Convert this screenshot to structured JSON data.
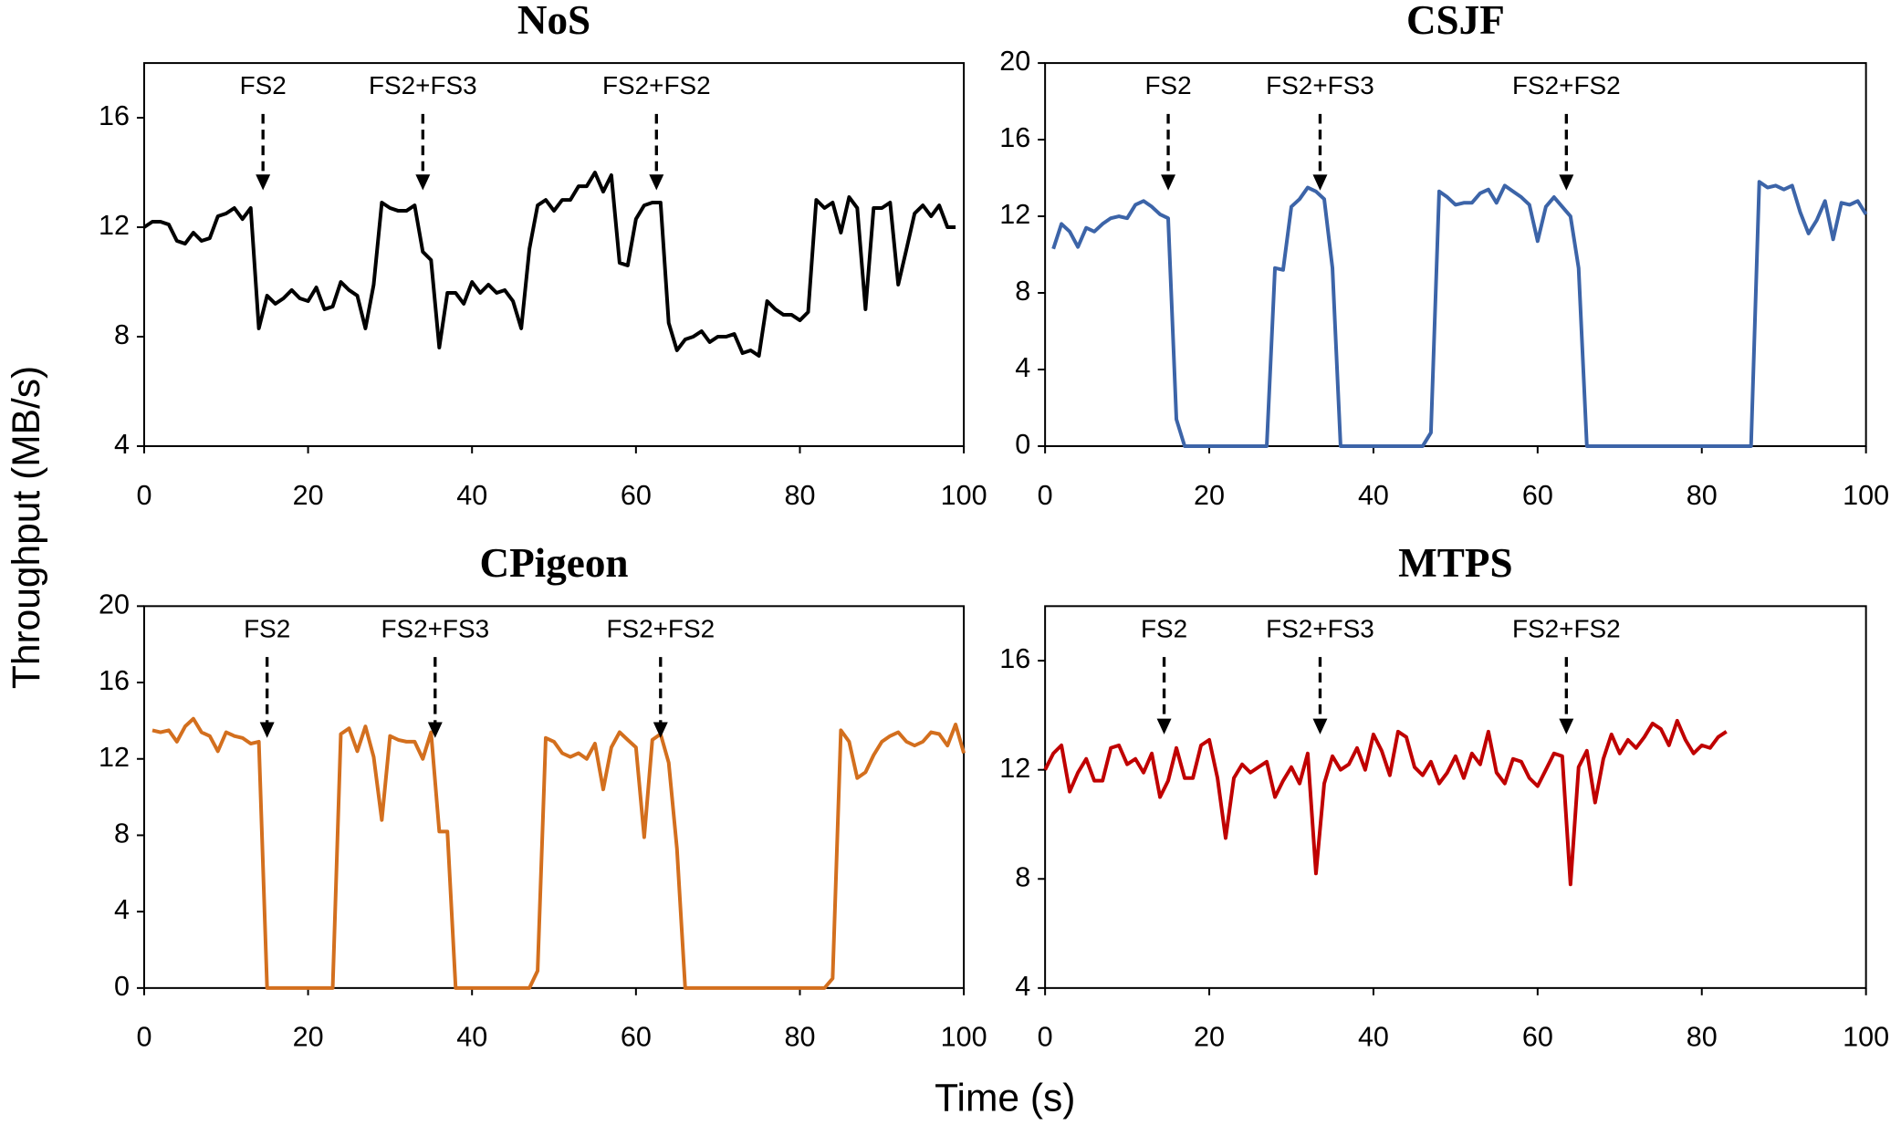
{
  "ylabel": "Throughput (MB/s)",
  "xlabel": "Time (s)",
  "chart_data": [
    {
      "type": "line",
      "title": "NoS",
      "color": "#000000",
      "xlim": [
        0,
        100
      ],
      "xticks": [
        0,
        20,
        40,
        60,
        80,
        100
      ],
      "ylim": [
        4,
        18
      ],
      "yticks": [
        4,
        8,
        12,
        16
      ],
      "x": [
        0,
        1,
        2,
        3,
        4,
        5,
        6,
        7,
        8,
        9,
        10,
        11,
        12,
        13,
        14,
        15,
        16,
        17,
        18,
        19,
        20,
        21,
        22,
        23,
        24,
        25,
        26,
        27,
        28,
        29,
        30,
        31,
        32,
        33,
        34,
        35,
        36,
        37,
        38,
        39,
        40,
        41,
        42,
        43,
        44,
        45,
        46,
        47,
        48,
        49,
        50,
        51,
        52,
        53,
        54,
        55,
        56,
        57,
        58,
        59,
        60,
        61,
        62,
        63,
        64,
        65,
        66,
        67,
        68,
        69,
        70,
        71,
        72,
        73,
        74,
        75,
        76,
        77,
        78,
        79,
        80,
        81,
        82,
        83,
        84,
        85,
        86,
        87,
        88,
        89,
        90,
        91,
        92,
        93,
        94,
        95,
        96,
        97,
        98,
        99
      ],
      "values": [
        12.0,
        12.2,
        12.2,
        12.1,
        11.5,
        11.4,
        11.8,
        11.5,
        11.6,
        12.4,
        12.5,
        12.7,
        12.3,
        12.7,
        8.3,
        9.5,
        9.2,
        9.4,
        9.7,
        9.4,
        9.3,
        9.8,
        9.0,
        9.1,
        10.0,
        9.7,
        9.5,
        8.3,
        9.9,
        12.9,
        12.7,
        12.6,
        12.6,
        12.8,
        11.1,
        10.8,
        7.6,
        9.6,
        9.6,
        9.2,
        10.0,
        9.6,
        9.9,
        9.6,
        9.7,
        9.3,
        8.3,
        11.2,
        12.8,
        13.0,
        12.6,
        13.0,
        13.0,
        13.5,
        13.5,
        14.0,
        13.3,
        13.9,
        10.7,
        10.6,
        12.3,
        12.8,
        12.9,
        12.9,
        8.5,
        7.5,
        7.9,
        8.0,
        8.2,
        7.8,
        8.0,
        8.0,
        8.1,
        7.4,
        7.5,
        7.3,
        9.3,
        9.0,
        8.8,
        8.8,
        8.6,
        8.9,
        13.0,
        12.7,
        12.9,
        11.8,
        13.1,
        12.7,
        9.0,
        12.7,
        12.7,
        12.9,
        9.9,
        11.2,
        12.5,
        12.8,
        12.4,
        12.8,
        12.0,
        12.0
      ],
      "annotations": [
        {
          "text": "FS2",
          "x": 14.5,
          "y": 13.35
        },
        {
          "text": "FS2+FS3",
          "x": 34,
          "y": 13.35
        },
        {
          "text": "FS2+FS2",
          "x": 62.5,
          "y": 13.35
        }
      ]
    },
    {
      "type": "line",
      "title": "CSJF",
      "color": "#3c64a8",
      "xlim": [
        0,
        100
      ],
      "xticks": [
        0,
        20,
        40,
        60,
        80,
        100
      ],
      "ylim": [
        0,
        20
      ],
      "yticks": [
        0,
        4,
        8,
        12,
        16,
        20
      ],
      "x": [
        1,
        2,
        3,
        4,
        5,
        6,
        7,
        8,
        9,
        10,
        11,
        12,
        13,
        14,
        15,
        16,
        17,
        27,
        28,
        29,
        30,
        31,
        32,
        33,
        34,
        35,
        36,
        46,
        47,
        48,
        49,
        50,
        51,
        52,
        53,
        54,
        55,
        56,
        57,
        58,
        59,
        60,
        61,
        62,
        63,
        64,
        65,
        66,
        86,
        87,
        88,
        89,
        90,
        91,
        92,
        93,
        94,
        95,
        96,
        97,
        98,
        99,
        100
      ],
      "values": [
        10.3,
        11.6,
        11.2,
        10.4,
        11.4,
        11.2,
        11.6,
        11.9,
        12.0,
        11.9,
        12.6,
        12.8,
        12.5,
        12.1,
        11.9,
        1.4,
        0,
        0,
        9.3,
        9.2,
        12.5,
        12.9,
        13.5,
        13.3,
        12.9,
        9.3,
        0,
        0,
        0.7,
        13.3,
        13.0,
        12.6,
        12.7,
        12.7,
        13.2,
        13.4,
        12.7,
        13.6,
        13.3,
        13.0,
        12.6,
        10.7,
        12.5,
        13.0,
        12.5,
        12.0,
        9.3,
        0,
        0,
        13.8,
        13.5,
        13.6,
        13.4,
        13.6,
        12.2,
        11.1,
        11.8,
        12.8,
        10.8,
        12.7,
        12.6,
        12.8,
        12.1
      ],
      "annotations": [
        {
          "text": "FS2",
          "x": 15,
          "y": 13.35
        },
        {
          "text": "FS2+FS3",
          "x": 33.5,
          "y": 13.35
        },
        {
          "text": "FS2+FS2",
          "x": 63.5,
          "y": 13.35
        }
      ]
    },
    {
      "type": "line",
      "title": "CPigeon",
      "color": "#d36f1e",
      "xlim": [
        0,
        100
      ],
      "xticks": [
        0,
        20,
        40,
        60,
        80,
        100
      ],
      "ylim": [
        0,
        20
      ],
      "yticks": [
        0,
        4,
        8,
        12,
        16,
        20
      ],
      "x": [
        1,
        2,
        3,
        4,
        5,
        6,
        7,
        8,
        9,
        10,
        11,
        12,
        13,
        14,
        15,
        23,
        24,
        25,
        26,
        27,
        28,
        29,
        30,
        31,
        32,
        33,
        34,
        35,
        36,
        37,
        38,
        47,
        48,
        49,
        50,
        51,
        52,
        53,
        54,
        55,
        56,
        57,
        58,
        59,
        60,
        61,
        62,
        63,
        64,
        65,
        66,
        83,
        84,
        85,
        86,
        87,
        88,
        89,
        90,
        91,
        92,
        93,
        94,
        95,
        96,
        97,
        98,
        99,
        100
      ],
      "values": [
        13.5,
        13.4,
        13.5,
        12.9,
        13.7,
        14.1,
        13.4,
        13.2,
        12.4,
        13.4,
        13.2,
        13.1,
        12.8,
        12.9,
        0,
        0,
        13.3,
        13.6,
        12.4,
        13.7,
        12.1,
        8.8,
        13.2,
        13.0,
        12.9,
        12.9,
        12.0,
        13.4,
        8.2,
        8.2,
        0,
        0,
        0.9,
        13.1,
        12.9,
        12.3,
        12.1,
        12.3,
        12.0,
        12.8,
        10.4,
        12.6,
        13.4,
        13.0,
        12.6,
        7.9,
        13.0,
        13.3,
        11.8,
        7.3,
        0,
        0,
        0.5,
        13.5,
        12.9,
        11.0,
        11.3,
        12.2,
        12.9,
        13.2,
        13.4,
        12.9,
        12.7,
        12.9,
        13.4,
        13.3,
        12.7,
        13.8,
        12.3
      ],
      "annotations": [
        {
          "text": "FS2",
          "x": 15,
          "y": 13.1
        },
        {
          "text": "FS2+FS3",
          "x": 35.5,
          "y": 13.1
        },
        {
          "text": "FS2+FS2",
          "x": 63,
          "y": 13.1
        }
      ]
    },
    {
      "type": "line",
      "title": "MTPS",
      "color": "#c00000",
      "xlim": [
        0,
        100
      ],
      "xticks": [
        0,
        20,
        40,
        60,
        80,
        100
      ],
      "ylim": [
        4,
        18
      ],
      "yticks": [
        4,
        8,
        12,
        16
      ],
      "x": [
        0,
        1,
        2,
        3,
        4,
        5,
        6,
        7,
        8,
        9,
        10,
        11,
        12,
        13,
        14,
        15,
        16,
        17,
        18,
        19,
        20,
        21,
        22,
        23,
        24,
        25,
        26,
        27,
        28,
        29,
        30,
        31,
        32,
        33,
        34,
        35,
        36,
        37,
        38,
        39,
        40,
        41,
        42,
        43,
        44,
        45,
        46,
        47,
        48,
        49,
        50,
        51,
        52,
        53,
        54,
        55,
        56,
        57,
        58,
        59,
        60,
        61,
        62,
        63,
        64,
        65,
        66,
        67,
        68,
        69,
        70,
        71,
        72,
        73,
        74,
        75,
        76,
        77,
        78,
        79,
        80,
        81,
        82,
        83
      ],
      "values": [
        12.0,
        12.6,
        12.9,
        11.2,
        11.9,
        12.4,
        11.6,
        11.6,
        12.8,
        12.9,
        12.2,
        12.4,
        11.9,
        12.6,
        11.0,
        11.6,
        12.8,
        11.7,
        11.7,
        12.9,
        13.1,
        11.7,
        9.5,
        11.7,
        12.2,
        11.9,
        12.1,
        12.3,
        11.0,
        11.6,
        12.1,
        11.5,
        12.6,
        8.2,
        11.5,
        12.5,
        12.0,
        12.2,
        12.8,
        12.0,
        13.3,
        12.7,
        11.8,
        13.4,
        13.2,
        12.1,
        11.8,
        12.3,
        11.5,
        11.9,
        12.5,
        11.7,
        12.6,
        12.2,
        13.4,
        11.9,
        11.5,
        12.4,
        12.3,
        11.7,
        11.4,
        12.0,
        12.6,
        12.5,
        7.8,
        12.1,
        12.7,
        10.8,
        12.4,
        13.3,
        12.6,
        13.1,
        12.8,
        13.2,
        13.7,
        13.5,
        12.9,
        13.8,
        13.1,
        12.6,
        12.9,
        12.8,
        13.2,
        13.4
      ],
      "annotations": [
        {
          "text": "FS2",
          "x": 14.5,
          "y": 13.3
        },
        {
          "text": "FS2+FS3",
          "x": 33.5,
          "y": 13.3
        },
        {
          "text": "FS2+FS2",
          "x": 63.5,
          "y": 13.3
        }
      ]
    }
  ]
}
